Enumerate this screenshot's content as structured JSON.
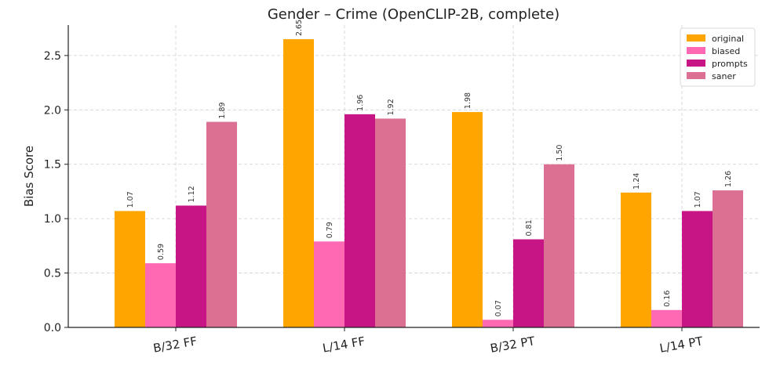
{
  "chart_data": {
    "type": "bar",
    "title": "Gender – Crime (OpenCLIP-2B, complete)",
    "xlabel": "",
    "ylabel": "Bias Score",
    "ylim": [
      0,
      2.78
    ],
    "yticks": [
      0.0,
      0.5,
      1.0,
      1.5,
      2.0,
      2.5
    ],
    "ytick_labels": [
      "0.0",
      "0.5",
      "1.0",
      "1.5",
      "2.0",
      "2.5"
    ],
    "grid": true,
    "legend_position": "top-right",
    "categories": [
      "B/32 FF",
      "L/14 FF",
      "B/32 PT",
      "L/14 PT"
    ],
    "series": [
      {
        "name": "original",
        "color": "#ffa500",
        "values": [
          1.07,
          2.65,
          1.98,
          1.24
        ],
        "labels": [
          "1.07",
          "2.65",
          "1.98",
          "1.24"
        ]
      },
      {
        "name": "biased",
        "color": "#ff69b4",
        "values": [
          0.59,
          0.79,
          0.07,
          0.16
        ],
        "labels": [
          "0.59",
          "0.79",
          "0.07",
          "0.16"
        ]
      },
      {
        "name": "prompts",
        "color": "#c71585",
        "values": [
          1.12,
          1.96,
          0.81,
          1.07
        ],
        "labels": [
          "1.12",
          "1.96",
          "0.81",
          "1.07"
        ]
      },
      {
        "name": "saner",
        "color": "#db7093",
        "values": [
          1.89,
          1.92,
          1.5,
          1.26
        ],
        "labels": [
          "1.89",
          "1.92",
          "1.50",
          "1.26"
        ]
      }
    ]
  }
}
